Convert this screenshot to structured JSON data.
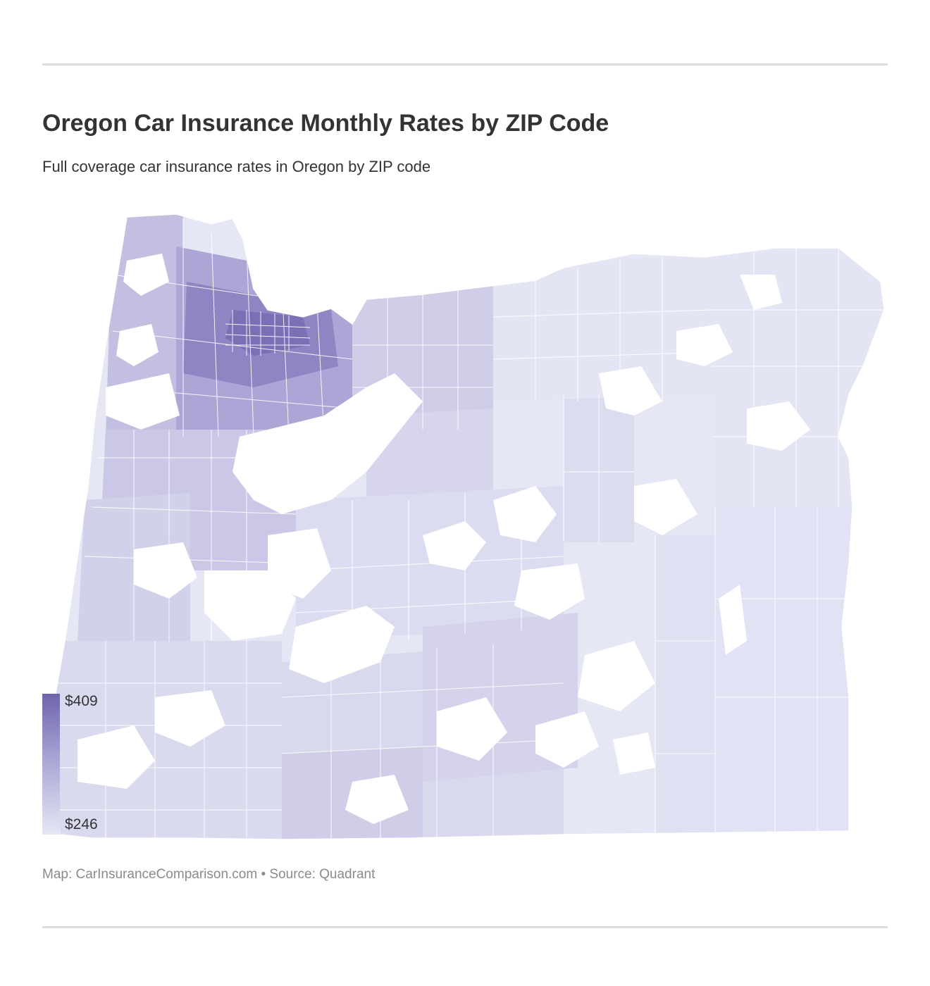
{
  "header": {
    "title": "Oregon Car Insurance Monthly Rates by ZIP Code",
    "subtitle": "Full coverage car insurance rates in Oregon by ZIP code"
  },
  "legend": {
    "max_label": "$409",
    "min_label": "$246",
    "max_value": 409,
    "min_value": 246,
    "colors": [
      "#6e64ac",
      "#e6e7f5"
    ]
  },
  "footer": {
    "source": "Map: CarInsuranceComparison.com • Source: Quadrant"
  },
  "map": {
    "region": "Oregon",
    "highest_rate_area": "northwest (Portland metro)",
    "region_colors": {
      "very_high": "#7a70b6",
      "high": "#9f99cc",
      "medium_high": "#b8b4dc",
      "medium": "#cfcde8",
      "low": "#dedff1",
      "very_low": "#e8e9f6",
      "boundary": "#ffffff",
      "no_data": "#ffffff"
    }
  }
}
